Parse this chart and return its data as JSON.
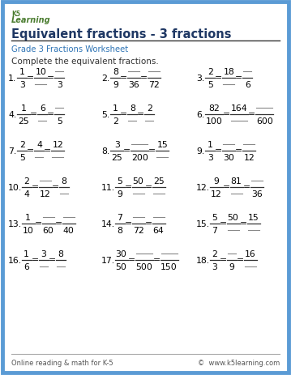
{
  "title": "Equivalent fractions - 3 fractions",
  "subtitle": "Grade 3 Fractions Worksheet",
  "instruction": "Complete the equivalent fractions.",
  "bg_color": "#ffffff",
  "border_color": "#5b9bd5",
  "title_color": "#1f3864",
  "subtitle_color": "#2e74b5",
  "text_color": "#333333",
  "footer_left": "Online reading & math for K-5",
  "footer_right": "©  www.k5learning.com",
  "fig_w": 3.59,
  "fig_h": 4.64,
  "dpi": 100,
  "problems": [
    {
      "num": "1.",
      "fracs": [
        [
          "1",
          "3"
        ],
        [
          "10",
          ""
        ],
        [
          "",
          "3"
        ]
      ]
    },
    {
      "num": "2.",
      "fracs": [
        [
          "8",
          "9"
        ],
        [
          "",
          "36"
        ],
        [
          "",
          "72"
        ]
      ]
    },
    {
      "num": "3.",
      "fracs": [
        [
          "2",
          "5"
        ],
        [
          "18",
          ""
        ],
        [
          "",
          "6"
        ]
      ]
    },
    {
      "num": "4.",
      "fracs": [
        [
          "1",
          "25"
        ],
        [
          "6",
          ""
        ],
        [
          "",
          "5"
        ]
      ]
    },
    {
      "num": "5.",
      "fracs": [
        [
          "1",
          "2"
        ],
        [
          "8",
          ""
        ],
        [
          "2",
          ""
        ]
      ]
    },
    {
      "num": "6.",
      "fracs": [
        [
          "82",
          "100"
        ],
        [
          "164",
          ""
        ],
        [
          "",
          "600"
        ]
      ]
    },
    {
      "num": "7.",
      "fracs": [
        [
          "2",
          "5"
        ],
        [
          "4",
          ""
        ],
        [
          "12",
          ""
        ]
      ]
    },
    {
      "num": "8.",
      "fracs": [
        [
          "3",
          "25"
        ],
        [
          "",
          "200"
        ],
        [
          "15",
          ""
        ]
      ]
    },
    {
      "num": "9.",
      "fracs": [
        [
          "1",
          "3"
        ],
        [
          "",
          "30"
        ],
        [
          "",
          "12"
        ]
      ]
    },
    {
      "num": "10.",
      "fracs": [
        [
          "2",
          "4"
        ],
        [
          "",
          "12"
        ],
        [
          "8",
          ""
        ]
      ]
    },
    {
      "num": "11.",
      "fracs": [
        [
          "5",
          "9"
        ],
        [
          "50",
          ""
        ],
        [
          "25",
          ""
        ]
      ]
    },
    {
      "num": "12.",
      "fracs": [
        [
          "9",
          "12"
        ],
        [
          "81",
          ""
        ],
        [
          "",
          "36"
        ]
      ]
    },
    {
      "num": "13.",
      "fracs": [
        [
          "1",
          "10"
        ],
        [
          "",
          "60"
        ],
        [
          "",
          "40"
        ]
      ]
    },
    {
      "num": "14.",
      "fracs": [
        [
          "7",
          "8"
        ],
        [
          "",
          "72"
        ],
        [
          "",
          "64"
        ]
      ]
    },
    {
      "num": "15.",
      "fracs": [
        [
          "5",
          "7"
        ],
        [
          "50",
          ""
        ],
        [
          "15",
          ""
        ]
      ]
    },
    {
      "num": "16.",
      "fracs": [
        [
          "1",
          "6"
        ],
        [
          "3",
          ""
        ],
        [
          "8",
          ""
        ]
      ]
    },
    {
      "num": "17.",
      "fracs": [
        [
          "30",
          "50"
        ],
        [
          "",
          "500"
        ],
        [
          "",
          "150"
        ]
      ]
    },
    {
      "num": "18.",
      "fracs": [
        [
          "2",
          "3"
        ],
        [
          "",
          "9"
        ],
        [
          "16",
          ""
        ]
      ]
    }
  ]
}
